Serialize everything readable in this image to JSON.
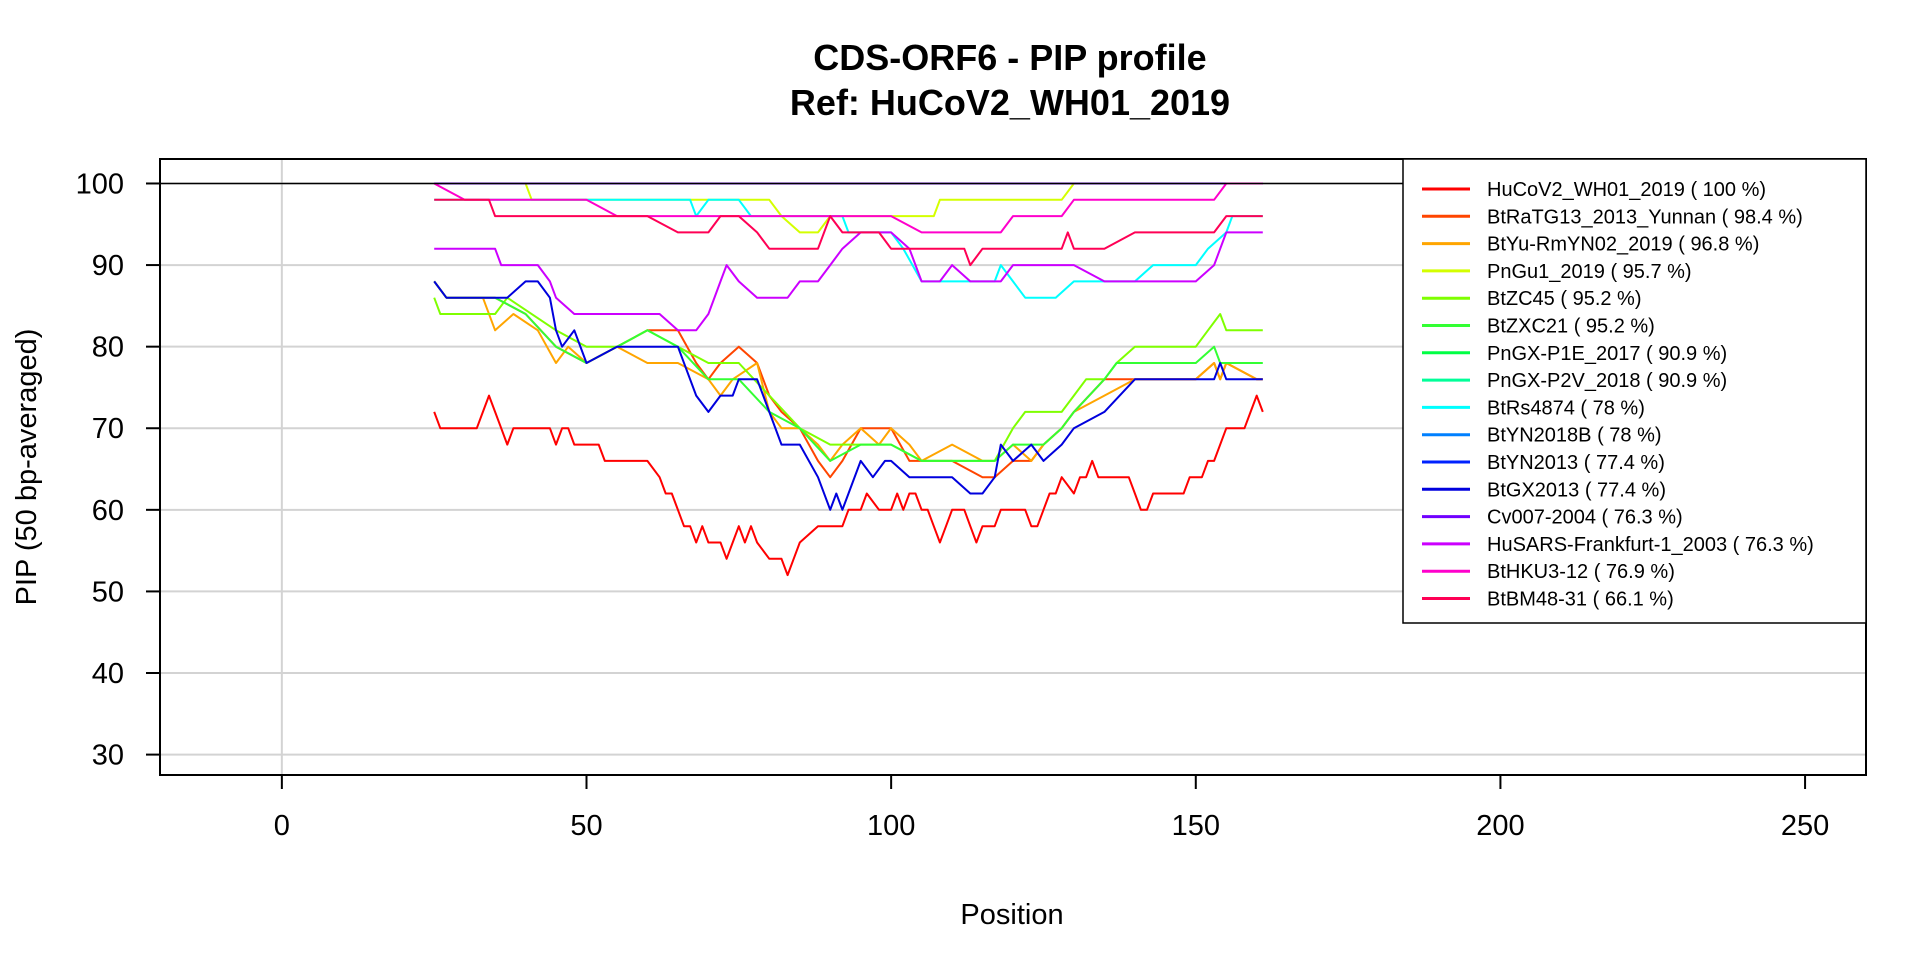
{
  "chart_data": {
    "type": "line",
    "title": "CDS-ORF6 - PIP profile",
    "subtitle": "Ref: HuCoV2_WH01_2019",
    "xlabel": "Position",
    "ylabel": "PIP (50 bp-averaged)",
    "xlim": [
      -20,
      260
    ],
    "ylim": [
      27.5,
      103
    ],
    "xticks": [
      0,
      50,
      100,
      150,
      200,
      250
    ],
    "yticks": [
      30,
      40,
      50,
      60,
      70,
      80,
      90,
      100
    ],
    "grid": true,
    "legend_position": "top-right",
    "series": [
      {
        "name": "HuCoV2_WH01_2019 ( 100 %)",
        "color": "#FF0000",
        "x": [
          25,
          161
        ],
        "y": [
          100,
          100
        ]
      },
      {
        "name": "BtRaTG13_2013_Yunnan ( 98.4 %)",
        "color": "#FF4500",
        "x": [
          25,
          27,
          35,
          40,
          45,
          50,
          55,
          60,
          65,
          68,
          70,
          72,
          75,
          78,
          80,
          82,
          85,
          88,
          90,
          92,
          95,
          100,
          103,
          105,
          110,
          115,
          117,
          120,
          123,
          125,
          128,
          130,
          135,
          140,
          145,
          150,
          153,
          154,
          155,
          160,
          161
        ],
        "y": [
          88,
          86,
          86,
          84,
          80,
          78,
          80,
          82,
          82,
          78,
          76,
          78,
          80,
          78,
          74,
          72,
          70,
          66,
          64,
          66,
          70,
          70,
          66,
          66,
          66,
          64,
          64,
          66,
          66,
          68,
          70,
          72,
          76,
          76,
          76,
          76,
          78,
          76,
          78,
          76,
          76
        ]
      },
      {
        "name": "BtYu-RmYN02_2019 ( 96.8 %)",
        "color": "#FFA500",
        "x": [
          25,
          27,
          33,
          35,
          38,
          42,
          45,
          47,
          50,
          55,
          60,
          65,
          70,
          72,
          74,
          78,
          80,
          82,
          85,
          88,
          90,
          92,
          95,
          98,
          100,
          103,
          105,
          110,
          115,
          117,
          120,
          123,
          125,
          128,
          130,
          135,
          140,
          145,
          150,
          153,
          154,
          155,
          160,
          161
        ],
        "y": [
          88,
          86,
          86,
          82,
          84,
          82,
          78,
          80,
          78,
          80,
          78,
          78,
          76,
          74,
          76,
          78,
          72,
          70,
          70,
          68,
          66,
          68,
          70,
          68,
          70,
          68,
          66,
          68,
          66,
          66,
          68,
          66,
          68,
          70,
          72,
          74,
          76,
          76,
          76,
          78,
          76,
          78,
          76,
          76
        ]
      },
      {
        "name": "PnGu1_2019 ( 95.7 %)",
        "color": "#D4FF00",
        "x": [
          25,
          40,
          41,
          80,
          82,
          85,
          88,
          90,
          92,
          95,
          100,
          105,
          107,
          108,
          110,
          120,
          128,
          130,
          140,
          150,
          155,
          161
        ],
        "y": [
          100,
          100,
          98,
          98,
          96,
          94,
          94,
          96,
          96,
          96,
          96,
          96,
          96,
          98,
          98,
          98,
          98,
          100,
          100,
          100,
          100,
          100
        ]
      },
      {
        "name": "BtZC45 ( 95.2 %)",
        "color": "#7FFF00",
        "x": [
          25,
          26,
          35,
          37,
          45,
          50,
          55,
          60,
          65,
          70,
          75,
          80,
          85,
          90,
          95,
          100,
          105,
          110,
          115,
          117,
          120,
          122,
          125,
          128,
          130,
          132,
          135,
          137,
          140,
          145,
          150,
          152,
          154,
          155,
          160,
          161
        ],
        "y": [
          86,
          84,
          84,
          86,
          82,
          80,
          80,
          82,
          80,
          78,
          78,
          74,
          70,
          68,
          68,
          68,
          66,
          66,
          66,
          66,
          70,
          72,
          72,
          72,
          74,
          76,
          76,
          78,
          80,
          80,
          80,
          82,
          84,
          82,
          82,
          82
        ]
      },
      {
        "name": "BtZXC21 ( 95.2 %)",
        "color": "#33FF33",
        "x": [
          25,
          27,
          35,
          40,
          45,
          50,
          55,
          60,
          65,
          70,
          75,
          80,
          85,
          90,
          95,
          100,
          105,
          110,
          115,
          117,
          120,
          125,
          128,
          130,
          135,
          137,
          140,
          145,
          150,
          153,
          154,
          155,
          160,
          161
        ],
        "y": [
          88,
          86,
          86,
          84,
          80,
          78,
          80,
          82,
          80,
          76,
          76,
          72,
          70,
          66,
          68,
          68,
          66,
          66,
          66,
          66,
          68,
          68,
          70,
          72,
          76,
          78,
          78,
          78,
          78,
          80,
          78,
          78,
          78,
          78
        ]
      },
      {
        "name": "PnGX-P1E_2017 ( 90.9 %)",
        "color": "#00FF44",
        "x": [
          25,
          161
        ],
        "y": [
          100,
          100
        ]
      },
      {
        "name": "PnGX-P2V_2018 ( 90.9 %)",
        "color": "#00FF99",
        "x": [
          25,
          161
        ],
        "y": [
          100,
          100
        ]
      },
      {
        "name": "BtRs4874 ( 78 %)",
        "color": "#00FFFF",
        "x": [
          25,
          50,
          65,
          67,
          68,
          70,
          72,
          75,
          77,
          80,
          85,
          90,
          92,
          93,
          95,
          100,
          102,
          105,
          110,
          115,
          117,
          118,
          120,
          122,
          125,
          127,
          130,
          135,
          140,
          143,
          145,
          150,
          152,
          155,
          156,
          161
        ],
        "y": [
          98,
          98,
          98,
          98,
          96,
          98,
          98,
          98,
          96,
          96,
          96,
          96,
          96,
          94,
          94,
          94,
          92,
          88,
          88,
          88,
          88,
          90,
          88,
          86,
          86,
          86,
          88,
          88,
          88,
          90,
          90,
          90,
          92,
          94,
          96,
          96
        ]
      },
      {
        "name": "BtYN2018B ( 78 %)",
        "color": "#0080FF",
        "x": [
          25,
          161
        ],
        "y": [
          100,
          100
        ]
      },
      {
        "name": "BtYN2013 ( 77.4 %)",
        "color": "#0022FF",
        "x": [
          25,
          161
        ],
        "y": [
          100,
          100
        ]
      },
      {
        "name": "BtGX2013 ( 77.4 %)",
        "color": "#0000DD",
        "x": [
          25,
          27,
          35,
          37,
          40,
          42,
          44,
          45,
          46,
          48,
          50,
          55,
          60,
          65,
          68,
          70,
          72,
          74,
          75,
          78,
          80,
          82,
          85,
          88,
          90,
          91,
          92,
          93,
          95,
          97,
          99,
          100,
          103,
          105,
          110,
          113,
          115,
          117,
          118,
          120,
          123,
          125,
          128,
          130,
          135,
          140,
          145,
          150,
          153,
          154,
          155,
          160,
          161
        ],
        "y": [
          88,
          86,
          86,
          86,
          88,
          88,
          86,
          82,
          80,
          82,
          78,
          80,
          80,
          80,
          74,
          72,
          74,
          74,
          76,
          76,
          72,
          68,
          68,
          64,
          60,
          62,
          60,
          62,
          66,
          64,
          66,
          66,
          64,
          64,
          64,
          62,
          62,
          64,
          68,
          66,
          68,
          66,
          68,
          70,
          72,
          76,
          76,
          76,
          76,
          78,
          76,
          76,
          76
        ]
      },
      {
        "name": "Cv007-2004 ( 76.3 %)",
        "color": "#7000FF",
        "x": [
          25,
          161
        ],
        "y": [
          100,
          100
        ]
      },
      {
        "name": "HuSARS-Frankfurt-1_2003 ( 76.3 %)",
        "color": "#CC00FF",
        "x": [
          25,
          28,
          30,
          35,
          36,
          38,
          40,
          42,
          44,
          45,
          48,
          55,
          60,
          62,
          65,
          68,
          70,
          72,
          73,
          75,
          78,
          80,
          83,
          85,
          88,
          90,
          92,
          95,
          97,
          100,
          103,
          105,
          108,
          110,
          113,
          115,
          118,
          120,
          125,
          128,
          130,
          135,
          140,
          145,
          150,
          153,
          155,
          161
        ],
        "y": [
          92,
          92,
          92,
          92,
          90,
          90,
          90,
          90,
          88,
          86,
          84,
          84,
          84,
          84,
          82,
          82,
          84,
          88,
          90,
          88,
          86,
          86,
          86,
          88,
          88,
          90,
          92,
          94,
          94,
          94,
          92,
          88,
          88,
          90,
          88,
          88,
          88,
          90,
          90,
          90,
          90,
          88,
          88,
          88,
          88,
          90,
          94,
          94
        ]
      },
      {
        "name": "BtHKU3-12 ( 76.9 %)",
        "color": "#FF00CC",
        "x": [
          25,
          30,
          40,
          45,
          50,
          55,
          60,
          65,
          70,
          75,
          80,
          85,
          88,
          90,
          92,
          95,
          100,
          105,
          108,
          110,
          115,
          118,
          120,
          125,
          128,
          130,
          135,
          140,
          145,
          150,
          153,
          155,
          161
        ],
        "y": [
          100,
          98,
          98,
          98,
          98,
          96,
          96,
          96,
          96,
          96,
          96,
          96,
          96,
          96,
          96,
          96,
          96,
          94,
          94,
          94,
          94,
          94,
          96,
          96,
          96,
          98,
          98,
          98,
          98,
          98,
          98,
          100,
          100
        ]
      },
      {
        "name": "BtBM48-31 ( 66.1 %)",
        "color": "#FF0055",
        "x": [
          25,
          34,
          35,
          40,
          45,
          50,
          55,
          60,
          65,
          68,
          70,
          72,
          75,
          78,
          80,
          82,
          85,
          88,
          90,
          92,
          95,
          98,
          100,
          103,
          105,
          108,
          110,
          112,
          113,
          115,
          118,
          120,
          125,
          128,
          129,
          130,
          135,
          140,
          145,
          150,
          153,
          155,
          161
        ],
        "y": [
          98,
          98,
          96,
          96,
          96,
          96,
          96,
          96,
          94,
          94,
          94,
          96,
          96,
          94,
          92,
          92,
          92,
          92,
          96,
          94,
          94,
          94,
          92,
          92,
          92,
          92,
          92,
          92,
          90,
          92,
          92,
          92,
          92,
          92,
          94,
          92,
          92,
          94,
          94,
          94,
          94,
          96,
          96
        ]
      },
      {
        "name": "",
        "color": "#FF0000",
        "x": [
          25,
          26,
          28,
          30,
          32,
          33,
          34,
          35,
          36,
          37,
          38,
          40,
          42,
          44,
          45,
          46,
          47,
          48,
          50,
          52,
          53,
          55,
          58,
          60,
          62,
          63,
          64,
          65,
          66,
          67,
          68,
          69,
          70,
          72,
          73,
          74,
          75,
          76,
          77,
          78,
          80,
          82,
          83,
          84,
          85,
          88,
          90,
          92,
          93,
          94,
          95,
          96,
          98,
          99,
          100,
          101,
          102,
          103,
          104,
          105,
          106,
          107,
          108,
          109,
          110,
          111,
          112,
          113,
          114,
          115,
          117,
          118,
          119,
          120,
          121,
          122,
          123,
          124,
          125,
          126,
          127,
          128,
          130,
          131,
          132,
          133,
          134,
          135,
          138,
          139,
          140,
          141,
          142,
          143,
          145,
          146,
          148,
          149,
          150,
          151,
          152,
          153,
          155,
          156,
          157,
          158,
          159,
          160,
          161
        ],
        "y": [
          72,
          70,
          70,
          70,
          70,
          72,
          74,
          72,
          70,
          68,
          70,
          70,
          70,
          70,
          68,
          70,
          70,
          68,
          68,
          68,
          66,
          66,
          66,
          66,
          64,
          62,
          62,
          60,
          58,
          58,
          56,
          58,
          56,
          56,
          54,
          56,
          58,
          56,
          58,
          56,
          54,
          54,
          52,
          54,
          56,
          58,
          58,
          58,
          60,
          60,
          60,
          62,
          60,
          60,
          60,
          62,
          60,
          62,
          62,
          60,
          60,
          58,
          56,
          58,
          60,
          60,
          60,
          58,
          56,
          58,
          58,
          60,
          60,
          60,
          60,
          60,
          58,
          58,
          60,
          62,
          62,
          64,
          62,
          64,
          64,
          66,
          64,
          64,
          64,
          64,
          62,
          60,
          60,
          62,
          62,
          62,
          62,
          64,
          64,
          64,
          66,
          66,
          70,
          70,
          70,
          70,
          72,
          74,
          72
        ]
      }
    ]
  }
}
